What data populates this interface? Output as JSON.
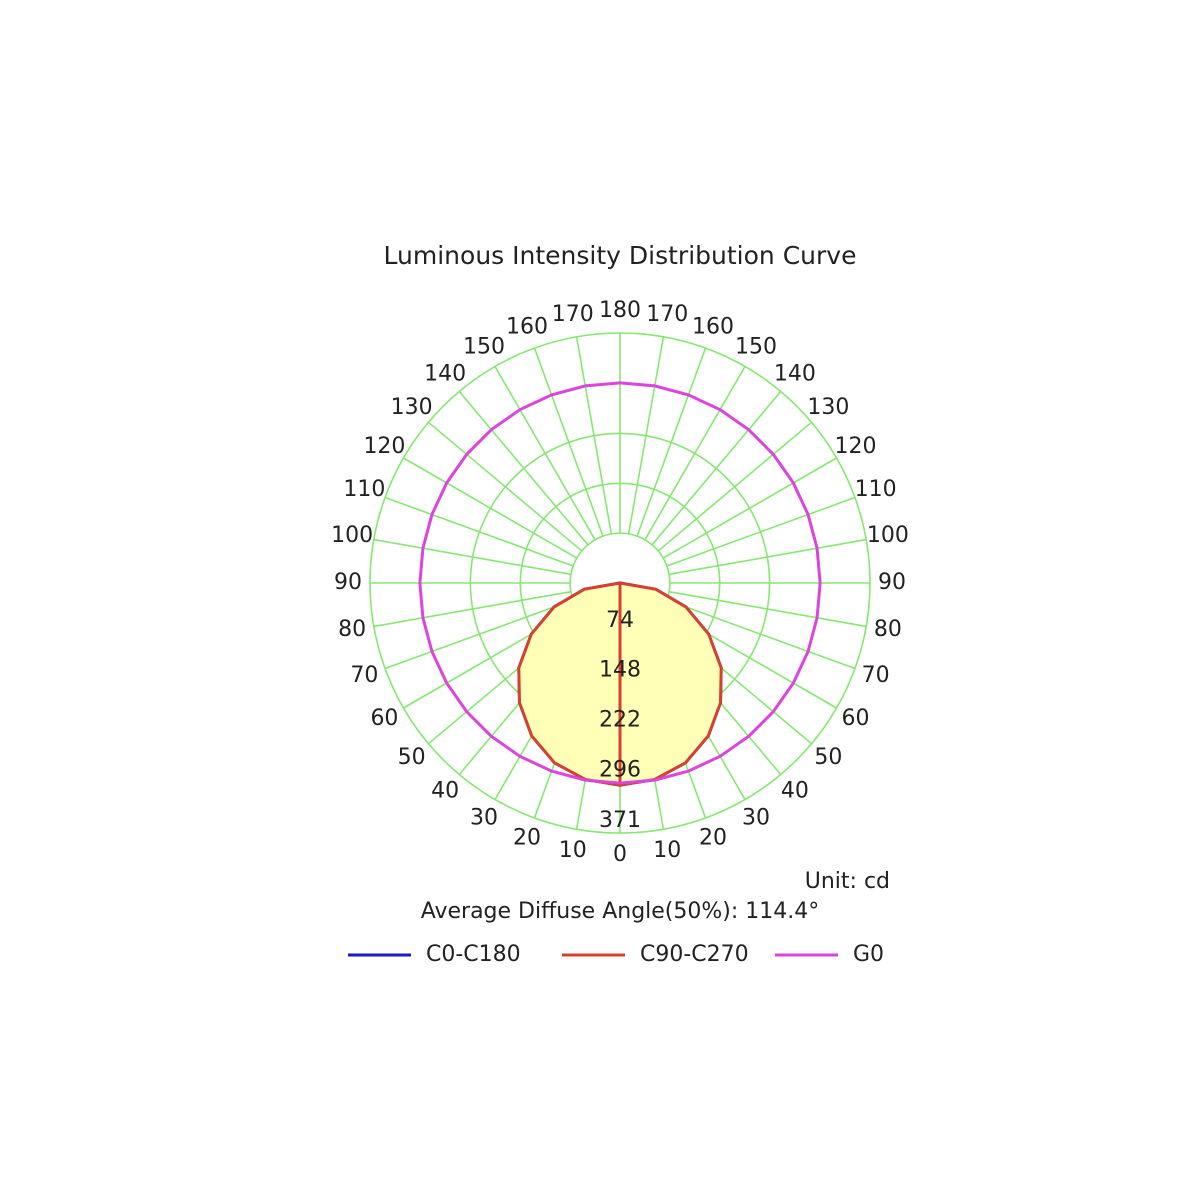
{
  "chart_data": {
    "type": "polar",
    "title": "Luminous Intensity Distribution Curve",
    "unit": "Unit: cd",
    "annotation": "Average Diffuse Angle(50%): 114.4°",
    "angles": [
      0,
      10,
      20,
      30,
      40,
      50,
      60,
      70,
      80,
      90,
      100,
      110,
      120,
      130,
      140,
      150,
      160,
      170,
      180
    ],
    "angle_ticks": [
      0,
      10,
      20,
      30,
      40,
      50,
      60,
      70,
      80,
      90,
      100,
      110,
      120,
      130,
      140,
      150,
      160,
      170,
      180
    ],
    "rlim": [
      0,
      371
    ],
    "rticks": [
      74,
      148,
      222,
      296,
      371
    ],
    "grid_color": "#86e870",
    "series": [
      {
        "name": "C0-C180",
        "color": "#1a1acc",
        "values": [
          300,
          296,
          284,
          262,
          232,
          196,
          152,
          104,
          54,
          0,
          0,
          0,
          0,
          0,
          0,
          0,
          0,
          0,
          0
        ]
      },
      {
        "name": "C90-C270",
        "color": "#d6402f",
        "fill": "#ffffb8",
        "values": [
          300,
          296,
          284,
          262,
          232,
          196,
          152,
          104,
          54,
          0,
          0,
          0,
          0,
          0,
          0,
          0,
          0,
          0,
          0
        ]
      },
      {
        "name": "G0",
        "color": "#dd44dd",
        "values": [
          297,
          297,
          297,
          297,
          297,
          297,
          297,
          297,
          297,
          297,
          297,
          297,
          297,
          297,
          297,
          297,
          297,
          297,
          297
        ]
      }
    ]
  }
}
